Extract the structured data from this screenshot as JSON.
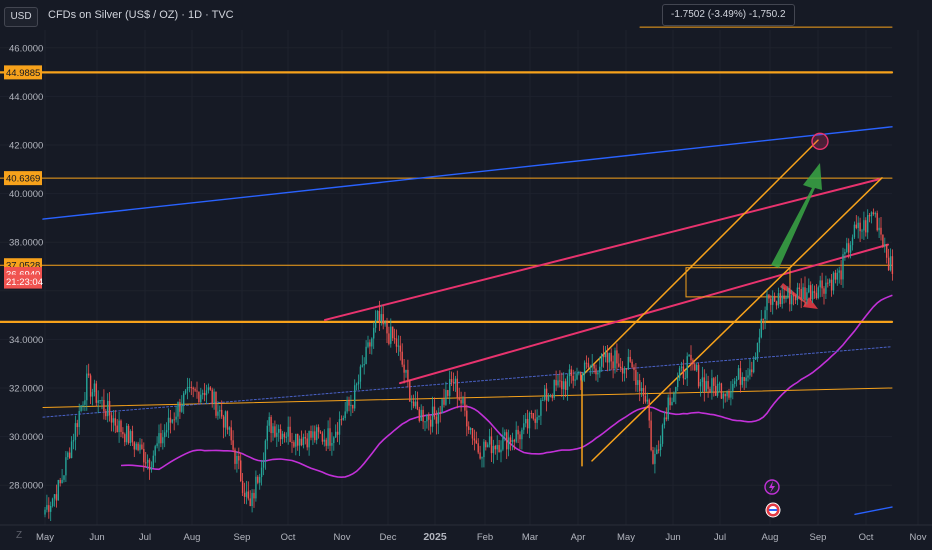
{
  "header": {
    "currency": "USD",
    "symbol_title": "CFDs on Silver (US$ / OZ) · 1D · TVC",
    "measure_readout": "-1.7502 (-3.49%) -1,750.2"
  },
  "colors": {
    "background": "#161a25",
    "grid": "#1e222d",
    "candle_up": "#26a69a",
    "candle_down": "#ef5350",
    "orange": "#f7a21b",
    "pink": "#e8336e",
    "blue": "#2962ff",
    "purple": "#c231d8",
    "green_arrow": "#3aa845",
    "red_arrow": "#e23a44",
    "label_red": "#f05350"
  },
  "chart_data": {
    "type": "candlestick",
    "y_ticks": [
      "46.0000",
      "44.0000",
      "42.0000",
      "40.0000",
      "38.0000",
      "34.0000",
      "32.0000",
      "30.0000",
      "28.0000"
    ],
    "x_ticks": [
      "May",
      "Jun",
      "Jul",
      "Aug",
      "Sep",
      "Oct",
      "Nov",
      "Dec",
      "2025",
      "Feb",
      "Mar",
      "Apr",
      "May",
      "Jun",
      "Jul",
      "Aug",
      "Sep",
      "Oct",
      "Nov"
    ],
    "price_labels": [
      {
        "text": "44.9885",
        "value": 44.9885,
        "style": "orange"
      },
      {
        "text": "40.6369",
        "value": 40.6369,
        "style": "orange"
      },
      {
        "text": "37.0528",
        "value": 37.0528,
        "style": "orange"
      },
      {
        "text": "36.6940",
        "value": 36.694,
        "style": "red"
      },
      {
        "text": "21:23:04",
        "value": 36.38,
        "style": "red"
      }
    ],
    "y_range": [
      26.5,
      47.0
    ],
    "anchors": [
      [
        0,
        27.0
      ],
      [
        8,
        28.0
      ],
      [
        22,
        32.2
      ],
      [
        38,
        30.5
      ],
      [
        55,
        29.0
      ],
      [
        72,
        31.5
      ],
      [
        85,
        32.0
      ],
      [
        95,
        30.6
      ],
      [
        108,
        27.0
      ],
      [
        118,
        30.5
      ],
      [
        132,
        30.0
      ],
      [
        150,
        30.0
      ],
      [
        162,
        31.5
      ],
      [
        175,
        34.8
      ],
      [
        185,
        33.8
      ],
      [
        195,
        31.0
      ],
      [
        205,
        30.8
      ],
      [
        215,
        32.3
      ],
      [
        228,
        29.5
      ],
      [
        240,
        29.8
      ],
      [
        252,
        30.2
      ],
      [
        265,
        31.8
      ],
      [
        275,
        32.3
      ],
      [
        285,
        32.8
      ],
      [
        300,
        33.2
      ],
      [
        310,
        32.7
      ],
      [
        317,
        31.5
      ],
      [
        320,
        28.8
      ],
      [
        328,
        31.5
      ],
      [
        338,
        33.0
      ],
      [
        350,
        32.0
      ],
      [
        360,
        32.0
      ],
      [
        372,
        33.0
      ],
      [
        380,
        35.5
      ],
      [
        392,
        35.8
      ],
      [
        402,
        36.0
      ],
      [
        418,
        36.6
      ],
      [
        425,
        38.3
      ],
      [
        432,
        38.7
      ],
      [
        436,
        39.3
      ],
      [
        441,
        38.2
      ],
      [
        446,
        36.69
      ]
    ]
  }
}
